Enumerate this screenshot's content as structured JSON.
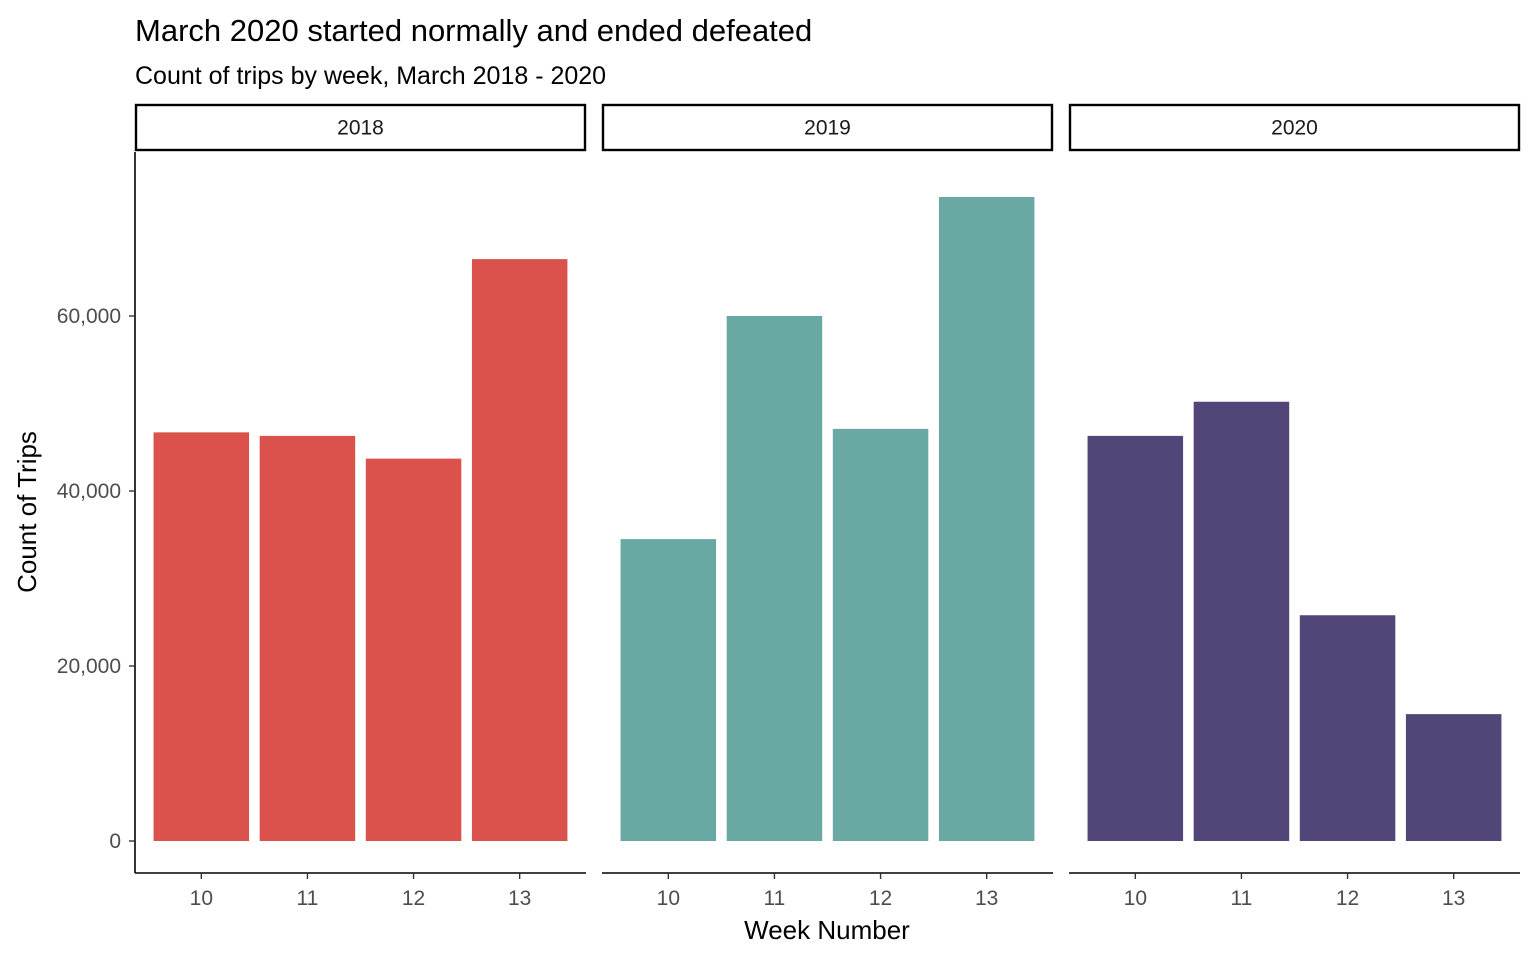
{
  "chart_data": {
    "type": "bar",
    "title": "March 2020 started normally and ended defeated",
    "subtitle": "Count of trips by week, March 2018 - 2020",
    "xlabel": "Week Number",
    "ylabel": "Count of Trips",
    "ylim": [
      0,
      75000
    ],
    "y_ticks": [
      0,
      20000,
      40000,
      60000
    ],
    "y_tick_labels": [
      "0",
      "20,000",
      "40,000",
      "60,000"
    ],
    "categories": [
      "10",
      "11",
      "12",
      "13"
    ],
    "grid": false,
    "panels": [
      {
        "label": "2018",
        "color": "#db514c",
        "values": [
          46700,
          46300,
          43700,
          66500
        ]
      },
      {
        "label": "2019",
        "color": "#6aa8a3",
        "values": [
          34500,
          60000,
          47100,
          73600
        ]
      },
      {
        "label": "2020",
        "color": "#524577",
        "values": [
          46300,
          50200,
          25800,
          14500
        ]
      }
    ]
  }
}
